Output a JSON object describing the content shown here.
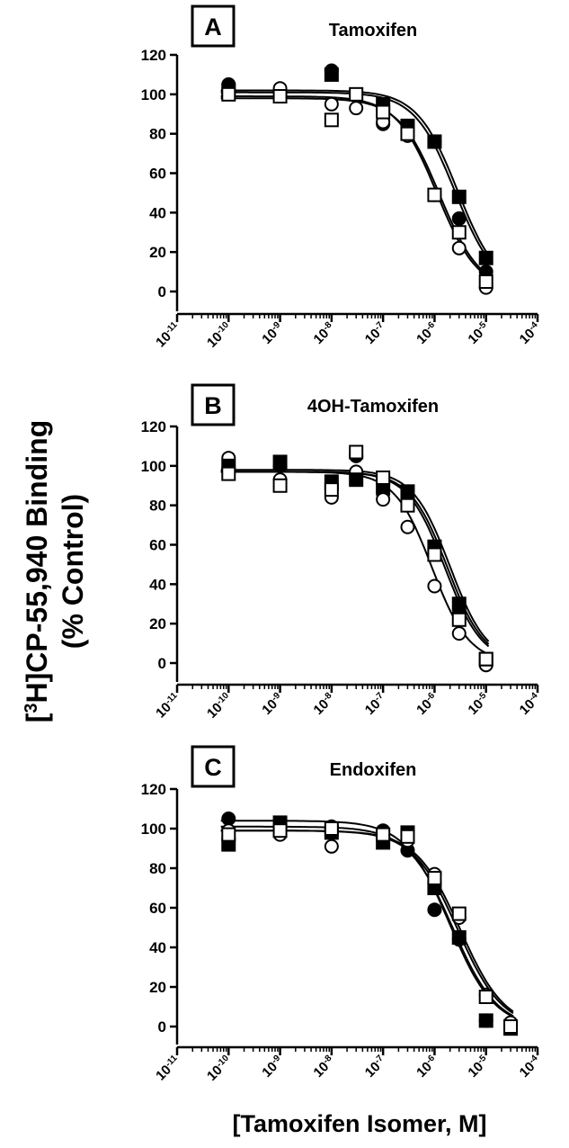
{
  "figure": {
    "ylabel_line1_pre": "[",
    "ylabel_sup": "3",
    "ylabel_line1_post": "H]CP-55,940 Binding",
    "ylabel_line2": "(% Control)",
    "xlabel": "[Tamoxifen Isomer, M]"
  },
  "chart_data": [
    {
      "type": "scatter",
      "panel_letter": "A",
      "title": "Tamoxifen",
      "xlabel": "",
      "ylabel": "",
      "x_scale": "log",
      "xlim": [
        1e-11,
        0.0001
      ],
      "x_ticks": [
        1e-11,
        1e-10,
        1e-09,
        1e-08,
        1e-07,
        1e-06,
        1e-05,
        0.0001
      ],
      "x_tick_labels": [
        {
          "base": "10",
          "exp": "-11"
        },
        {
          "base": "10",
          "exp": "-10"
        },
        {
          "base": "10",
          "exp": "-9"
        },
        {
          "base": "10",
          "exp": "-8"
        },
        {
          "base": "10",
          "exp": "-7"
        },
        {
          "base": "10",
          "exp": "-6"
        },
        {
          "base": "10",
          "exp": "-5"
        },
        {
          "base": "10",
          "exp": "-4"
        }
      ],
      "ylim": [
        -10,
        120
      ],
      "y_ticks": [
        0,
        20,
        40,
        60,
        80,
        100,
        120
      ],
      "y_tick_labels": [
        "0",
        "20",
        "40",
        "60",
        "80",
        "100",
        "120"
      ],
      "grid": false,
      "series": [
        {
          "marker": "filled-circle",
          "x": [
            1e-10,
            1e-08,
            1e-07,
            1e-06,
            3e-06,
            1e-05
          ],
          "y": [
            105,
            112,
            85,
            76,
            37,
            10
          ],
          "fit": {
            "top": 101,
            "bottom": 0,
            "log_ic50": -5.6,
            "hill": -1.1
          }
        },
        {
          "marker": "open-circle",
          "x": [
            1e-10,
            1e-09,
            1e-08,
            3e-08,
            1e-07,
            3e-07,
            1e-06,
            3e-06,
            1e-05
          ],
          "y": [
            101,
            103,
            95,
            93,
            86,
            79,
            49,
            22,
            2
          ],
          "fit": {
            "top": 99,
            "bottom": 0,
            "log_ic50": -5.95,
            "hill": -1.1
          }
        },
        {
          "marker": "filled-square",
          "x": [
            1e-10,
            1e-08,
            1e-07,
            3e-07,
            1e-06,
            3e-06,
            1e-05
          ],
          "y": [
            102,
            110,
            95,
            84,
            76,
            48,
            17
          ],
          "fit": {
            "top": 102,
            "bottom": 0,
            "log_ic50": -5.55,
            "hill": -1.1
          }
        },
        {
          "marker": "open-square",
          "x": [
            1e-10,
            1e-09,
            1e-08,
            3e-08,
            1e-07,
            3e-07,
            1e-06,
            3e-06,
            1e-05
          ],
          "y": [
            100,
            99,
            87,
            100,
            91,
            80,
            49,
            30,
            5
          ],
          "fit": {
            "top": 98,
            "bottom": 0,
            "log_ic50": -5.9,
            "hill": -1.1
          }
        }
      ]
    },
    {
      "type": "scatter",
      "panel_letter": "B",
      "title": "4OH-Tamoxifen",
      "xlabel": "",
      "ylabel": "",
      "x_scale": "log",
      "xlim": [
        1e-11,
        0.0001
      ],
      "x_ticks": [
        1e-11,
        1e-10,
        1e-09,
        1e-08,
        1e-07,
        1e-06,
        1e-05,
        0.0001
      ],
      "x_tick_labels": [
        {
          "base": "10",
          "exp": "-11"
        },
        {
          "base": "10",
          "exp": "-10"
        },
        {
          "base": "10",
          "exp": "-9"
        },
        {
          "base": "10",
          "exp": "-8"
        },
        {
          "base": "10",
          "exp": "-7"
        },
        {
          "base": "10",
          "exp": "-6"
        },
        {
          "base": "10",
          "exp": "-5"
        },
        {
          "base": "10",
          "exp": "-4"
        }
      ],
      "ylim": [
        -10,
        120
      ],
      "y_ticks": [
        0,
        20,
        40,
        60,
        80,
        100,
        120
      ],
      "y_tick_labels": [
        "0",
        "20",
        "40",
        "60",
        "80",
        "100",
        "120"
      ],
      "grid": false,
      "series": [
        {
          "marker": "filled-circle",
          "x": [
            1e-10,
            1e-09,
            1e-08,
            3e-08,
            1e-07,
            3e-07,
            1e-06,
            3e-06,
            1e-05
          ],
          "y": [
            98,
            100,
            88,
            105,
            86,
            82,
            57,
            25,
            1
          ],
          "fit": {
            "top": 97,
            "bottom": 0,
            "log_ic50": -5.75,
            "hill": -1.2
          }
        },
        {
          "marker": "open-circle",
          "x": [
            1e-10,
            1e-09,
            1e-08,
            3e-08,
            1e-07,
            3e-07,
            1e-06,
            3e-06,
            1e-05
          ],
          "y": [
            104,
            93,
            84,
            97,
            83,
            69,
            39,
            15,
            -1
          ],
          "fit": {
            "top": 97,
            "bottom": 0,
            "log_ic50": -6.05,
            "hill": -1.2
          }
        },
        {
          "marker": "filled-square",
          "x": [
            1e-10,
            1e-09,
            1e-08,
            3e-08,
            1e-07,
            3e-07,
            1e-06,
            3e-06,
            1e-05
          ],
          "y": [
            100,
            102,
            92,
            93,
            90,
            87,
            59,
            30,
            2
          ],
          "fit": {
            "top": 98,
            "bottom": 0,
            "log_ic50": -5.7,
            "hill": -1.2
          }
        },
        {
          "marker": "open-square",
          "x": [
            1e-10,
            1e-09,
            1e-08,
            3e-08,
            1e-07,
            3e-07,
            1e-06,
            3e-06,
            1e-05
          ],
          "y": [
            96,
            90,
            88,
            107,
            94,
            80,
            55,
            22,
            2
          ],
          "fit": {
            "top": 97,
            "bottom": 0,
            "log_ic50": -5.8,
            "hill": -1.2
          }
        }
      ]
    },
    {
      "type": "scatter",
      "panel_letter": "C",
      "title": "Endoxifen",
      "xlabel": "",
      "ylabel": "",
      "x_scale": "log",
      "xlim": [
        1e-11,
        0.0001
      ],
      "x_ticks": [
        1e-11,
        1e-10,
        1e-09,
        1e-08,
        1e-07,
        1e-06,
        1e-05,
        0.0001
      ],
      "x_tick_labels": [
        {
          "base": "10",
          "exp": "-11"
        },
        {
          "base": "10",
          "exp": "-10"
        },
        {
          "base": "10",
          "exp": "-9"
        },
        {
          "base": "10",
          "exp": "-8"
        },
        {
          "base": "10",
          "exp": "-7"
        },
        {
          "base": "10",
          "exp": "-6"
        },
        {
          "base": "10",
          "exp": "-5"
        },
        {
          "base": "10",
          "exp": "-4"
        }
      ],
      "ylim": [
        -10,
        120
      ],
      "y_ticks": [
        0,
        20,
        40,
        60,
        80,
        100,
        120
      ],
      "y_tick_labels": [
        "0",
        "20",
        "40",
        "60",
        "80",
        "100",
        "120"
      ],
      "grid": false,
      "series": [
        {
          "marker": "filled-circle",
          "x": [
            1e-10,
            1e-09,
            1e-08,
            1e-07,
            3e-07,
            1e-06,
            3e-06,
            1e-05,
            3e-05
          ],
          "y": [
            105,
            102,
            101,
            99,
            89,
            59,
            44,
            3,
            0
          ],
          "fit": {
            "top": 104,
            "bottom": -1,
            "log_ic50": -5.7,
            "hill": -1.0
          }
        },
        {
          "marker": "open-circle",
          "x": [
            1e-10,
            1e-09,
            1e-08,
            1e-07,
            3e-07,
            1e-06,
            3e-06,
            1e-05,
            3e-05
          ],
          "y": [
            99,
            97,
            91,
            96,
            94,
            77,
            55,
            16,
            2
          ],
          "fit": {
            "top": 99,
            "bottom": -1,
            "log_ic50": -5.55,
            "hill": -1.0
          }
        },
        {
          "marker": "filled-square",
          "x": [
            1e-10,
            1e-09,
            1e-08,
            1e-07,
            3e-07,
            1e-06,
            3e-06,
            1e-05,
            3e-05
          ],
          "y": [
            92,
            103,
            98,
            93,
            98,
            70,
            45,
            3,
            -1
          ],
          "fit": {
            "top": 101,
            "bottom": -1,
            "log_ic50": -5.65,
            "hill": -1.0
          }
        },
        {
          "marker": "open-square",
          "x": [
            1e-10,
            1e-09,
            1e-08,
            1e-07,
            3e-07,
            1e-06,
            3e-06,
            1e-05,
            3e-05
          ],
          "y": [
            97,
            99,
            100,
            97,
            96,
            75,
            57,
            15,
            0
          ],
          "fit": {
            "top": 99,
            "bottom": -1,
            "log_ic50": -5.5,
            "hill": -1.0
          }
        }
      ]
    }
  ]
}
